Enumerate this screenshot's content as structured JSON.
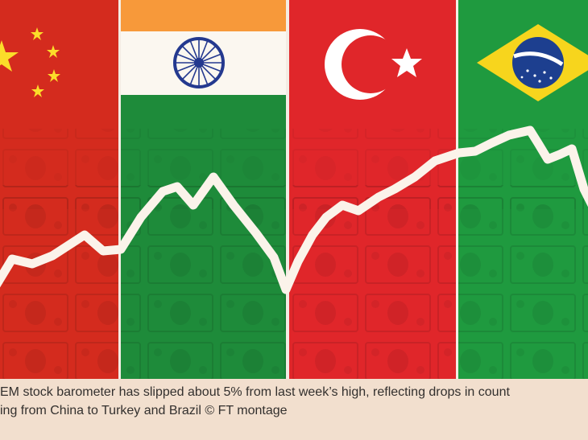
{
  "image": {
    "subject": "montage",
    "flags": [
      "china-flag",
      "india-flag",
      "turkey-flag",
      "brazil-flag"
    ],
    "overlay": "dollar-banknotes-texture",
    "trend": "white-line"
  },
  "colors": {
    "page_bg": "#f2dfce",
    "china_red": "#d42b1e",
    "india_saffron": "#f7993a",
    "india_green": "#1e8b3a",
    "turkey_red": "#e0262a",
    "brazil_green": "#1f9a3f",
    "brazil_yellow": "#f7d51d",
    "brazil_blue": "#1d3f8f",
    "line": "#fbf3ea"
  },
  "caption": {
    "line1": "EM stock barometer has slipped about 5% from last week’s high, reflecting drops in count",
    "line2": "ing from China to Turkey and Brazil © FT montage"
  }
}
